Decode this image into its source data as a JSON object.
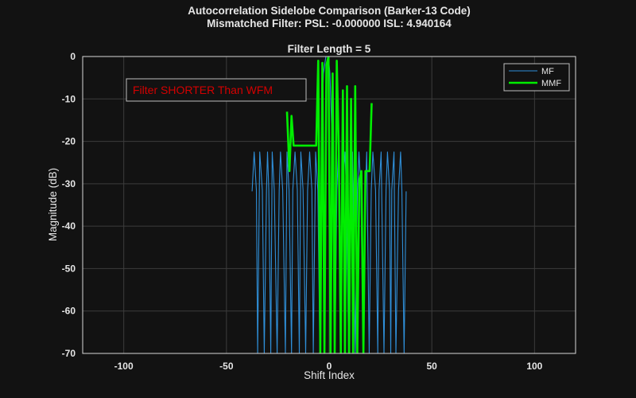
{
  "figure": {
    "title_line1": "Autocorrelation Sidelobe Comparison (Barker-13 Code)",
    "title_line2": "Mismatched Filter: PSL: -0.000000  ISL: 4.940164"
  },
  "colors": {
    "background": "#121212",
    "axes_bg": "#121212",
    "grid": "#3c3c3c",
    "axis": "#d8d8d8",
    "mf": "#2f8fd8",
    "mmf": "#00ee00",
    "annotation": "#d40000"
  },
  "chart_data": {
    "type": "line",
    "title": "Filter Length = 5",
    "xlabel": "Shift Index",
    "ylabel": "Magnitude (dB)",
    "xlim": [
      -120,
      120
    ],
    "ylim": [
      -70,
      0
    ],
    "xticks": [
      -100,
      -50,
      0,
      50,
      100
    ],
    "yticks": [
      0,
      -10,
      -20,
      -30,
      -40,
      -50,
      -60,
      -70
    ],
    "grid": true,
    "legend_position": "top-right",
    "annotation": "Filter SHORTER Than WFM",
    "series": [
      {
        "name": "MF",
        "color": "#2f8fd8",
        "style": "thin",
        "x": [
          -37.5,
          -36.5,
          -35.4,
          -34.8,
          -33.8,
          -32.5,
          -31.6,
          -30.5,
          -30.0,
          -29.4,
          -28.4,
          -27.7,
          -26.7,
          -25.3,
          -24.3,
          -23.7,
          -22.6,
          -21.3,
          -20.5,
          -19.5,
          -18.3,
          -17.7,
          -16.6,
          -15.5,
          -14.5,
          -13.8,
          -12.7,
          -11.4,
          -10.5,
          -9.5,
          -8.4,
          -7.7,
          -6.6,
          -5.5,
          -4.5,
          -3.8,
          -2.8,
          -1.6,
          -0.4,
          0.4,
          1.6,
          2.8,
          3.8,
          4.5,
          5.5,
          6.6,
          7.7,
          8.4,
          9.5,
          10.5,
          11.4,
          12.7,
          13.8,
          14.5,
          15.5,
          16.6,
          17.7,
          18.3,
          19.5,
          20.5,
          21.3,
          22.6,
          23.7,
          24.3,
          25.3,
          26.7,
          27.7,
          28.4,
          29.4,
          30.0,
          30.5,
          31.6,
          32.5,
          33.8,
          34.8,
          35.4,
          36.5,
          37.5
        ],
        "y": [
          -31.8,
          -22.5,
          -31.5,
          -70,
          -22.5,
          -31.5,
          -70,
          -31.5,
          -22.5,
          -31.5,
          -70,
          -22.5,
          -31.5,
          -70,
          -31.5,
          -22.5,
          -31.5,
          -70,
          -22.5,
          -31.5,
          -70,
          -31.5,
          -22.5,
          -31.5,
          -70,
          -22.5,
          -31.5,
          -70,
          -31.5,
          -22.5,
          -31.5,
          -70,
          -22.5,
          -31.5,
          -70,
          -22.0,
          -4.0,
          0,
          0,
          -4.0,
          -22.0,
          -70,
          -31.5,
          -22.5,
          -70,
          -31.5,
          -22.5,
          -31.5,
          -70,
          -31.5,
          -22.5,
          -70,
          -31.5,
          -22.5,
          -31.5,
          -70,
          -31.5,
          -22.5,
          -70,
          -31.5,
          -22.5,
          -31.5,
          -70,
          -31.5,
          -22.5,
          -70,
          -31.5,
          -22.5,
          -31.5,
          -70,
          -31.5,
          -22.5,
          -70,
          -31.5,
          -22.5,
          -31.5,
          -70,
          -31.8
        ]
      },
      {
        "name": "MMF",
        "color": "#00ee00",
        "style": "thick",
        "x": [
          -20.5,
          -19.3,
          -18.3,
          -17.3,
          -16.3,
          -15.3,
          -14.3,
          -13.3,
          -12.3,
          -11.3,
          -10.3,
          -9.3,
          -8.3,
          -7.3,
          -6.3,
          -5.3,
          -4.3,
          -3.3,
          -2.3,
          -1.3,
          -0.3,
          0.7,
          1.7,
          2.7,
          3.7,
          4.7,
          5.7,
          6.7,
          7.7,
          8.7,
          9.7,
          10.7,
          11.7,
          12.7,
          13.7,
          14.7,
          15.7,
          16.7,
          17.7,
          18.7,
          19.7,
          20.7
        ],
        "y": [
          -13,
          -27,
          -14,
          -21,
          -21,
          -21,
          -21,
          -21,
          -21,
          -21,
          -21,
          -21,
          -21,
          -21,
          -21,
          -1,
          -70,
          -1.5,
          -70,
          -2,
          0,
          -70,
          -4,
          -70,
          -1,
          -21,
          -70,
          -8,
          -70,
          -7,
          -70,
          -10,
          -70,
          -7,
          -70,
          -29,
          -27,
          -70,
          -27,
          -27,
          -27,
          -11
        ]
      }
    ]
  }
}
